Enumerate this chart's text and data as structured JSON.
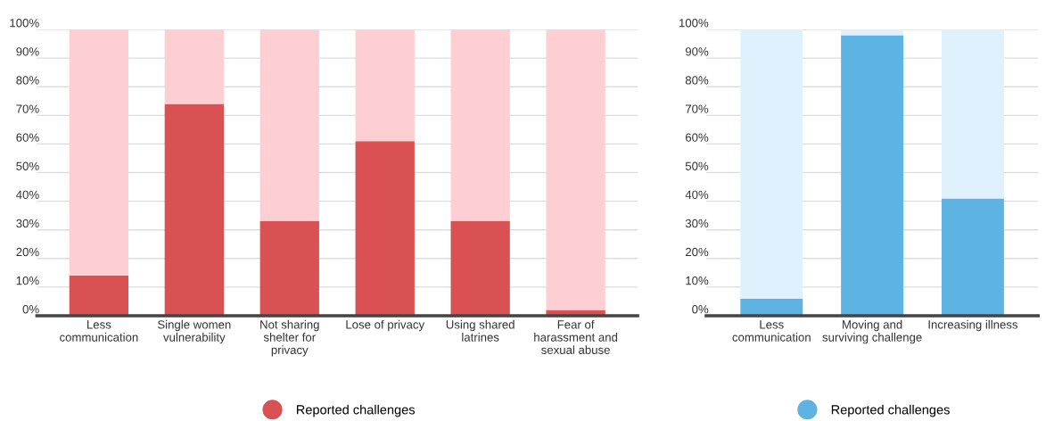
{
  "chart_data": [
    {
      "type": "bar",
      "stacked": true,
      "categories": [
        "Less\ncommunication",
        "Single women\nvulnerability",
        "Not sharing\nshelter for\nprivacy",
        "Lose of privacy",
        "Using shared\nlatrines",
        "Fear of\nharassment and\nsexual abuse"
      ],
      "series": [
        {
          "name": "Reported challenges",
          "color": "#d95153",
          "values": [
            14,
            74,
            33,
            61,
            33,
            2
          ]
        },
        {
          "color": "#fdcfd2",
          "values": [
            86,
            26,
            67,
            39,
            67,
            98
          ]
        }
      ],
      "ylim": [
        0,
        100
      ],
      "yticks": [
        {
          "value": 0,
          "label": "0%"
        },
        {
          "value": 10,
          "label": "10%"
        },
        {
          "value": 20,
          "label": "20%"
        },
        {
          "value": 30,
          "label": "30%"
        },
        {
          "value": 40,
          "label": "40%"
        },
        {
          "value": 50,
          "label": "50%"
        },
        {
          "value": 60,
          "label": "60%"
        },
        {
          "value": 70,
          "label": "70%"
        },
        {
          "value": 80,
          "label": "80%"
        },
        {
          "value": 90,
          "label": "90%"
        },
        {
          "value": 100,
          "label": "100%"
        }
      ],
      "grid": "y",
      "legend": "bottom"
    },
    {
      "type": "bar",
      "stacked": true,
      "categories": [
        "Less\ncommunication",
        "Moving and\nsurviving challenge",
        "Increasing illness"
      ],
      "series": [
        {
          "name": "Reported challenges",
          "color": "#5db4e2",
          "values": [
            6,
            98,
            41
          ]
        },
        {
          "color": "#dff1fc",
          "values": [
            94,
            2,
            59
          ]
        }
      ],
      "ylim": [
        0,
        100
      ],
      "yticks": [
        {
          "value": 0,
          "label": "0%"
        },
        {
          "value": 10,
          "label": "10%"
        },
        {
          "value": 20,
          "label": "20%"
        },
        {
          "value": 30,
          "label": "30%"
        },
        {
          "value": 40,
          "label": "40%"
        },
        {
          "value": 50,
          "label": "50%"
        },
        {
          "value": 60,
          "label": "60%"
        },
        {
          "value": 70,
          "label": "70%"
        },
        {
          "value": 80,
          "label": "80%"
        },
        {
          "value": 90,
          "label": "90%"
        },
        {
          "value": 100,
          "label": "100%"
        }
      ],
      "grid": "y",
      "legend": "bottom"
    }
  ]
}
